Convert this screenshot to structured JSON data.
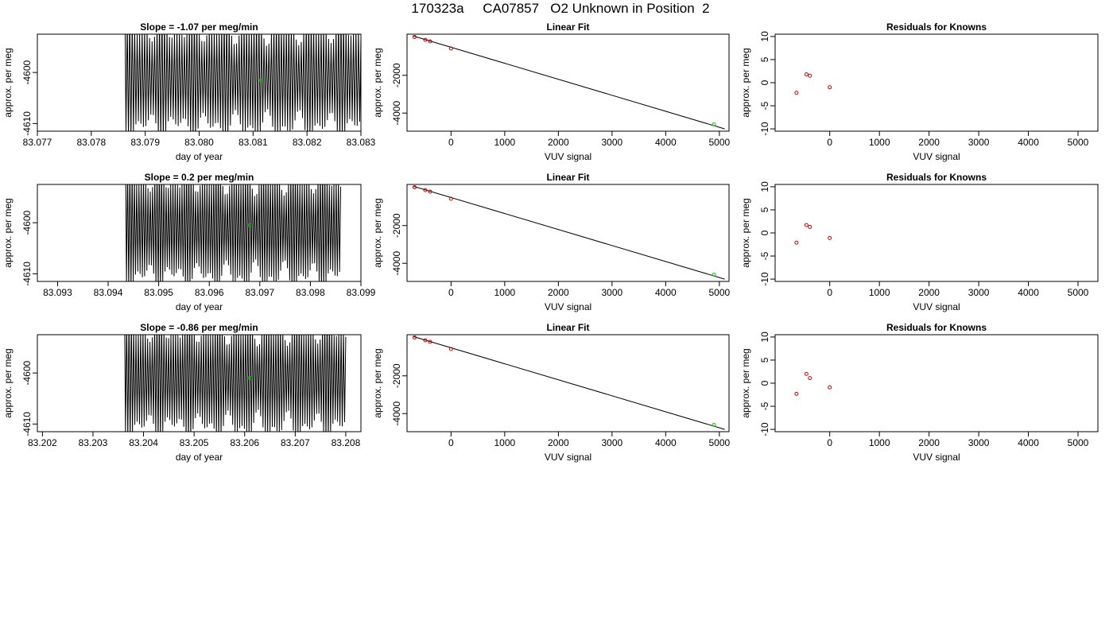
{
  "page": {
    "title": "170323a     CA07857   O2 Unknown in Position  2"
  },
  "colors": {
    "trace": "#000000",
    "unknown_point": "#00cc00",
    "known_point": "#cc0000",
    "fit_line": "#000000"
  },
  "chart_data": [
    {
      "panel": "trace-row-1",
      "type": "line",
      "title": "Slope =  -1.07  per meg/min",
      "xlabel": "day of year",
      "ylabel": "approx. per meg",
      "xlim": [
        83.077,
        83.083
      ],
      "ylim": [
        -4611.5,
        -4592.5
      ],
      "x_ticks": [
        "83.077",
        "83.078",
        "83.079",
        "83.080",
        "83.081",
        "83.082",
        "83.083"
      ],
      "y_ticks": [
        "-4600",
        "-4610"
      ],
      "signal": {
        "x_start": 83.07862,
        "x_end": 83.083,
        "center": -4601,
        "amplitude": 9.5,
        "cycles": 95
      },
      "marker": {
        "x": 83.08115,
        "y": -4601.5
      }
    },
    {
      "panel": "fit-row-1",
      "type": "scatter",
      "title": "Linear Fit",
      "xlabel": "VUV signal",
      "ylabel": "approx. per meg",
      "xlim": [
        -820,
        5180
      ],
      "ylim": [
        -4960,
        180
      ],
      "x_ticks": [
        "0",
        "1000",
        "2000",
        "3000",
        "4000",
        "5000"
      ],
      "y_ticks": [
        "-2000",
        "-4000"
      ],
      "known_points": [
        [
          -680,
          30
        ],
        [
          -480,
          -120
        ],
        [
          -390,
          -200
        ],
        [
          0,
          -580
        ]
      ],
      "unknown_point": [
        4900,
        -4600
      ],
      "fit_line": [
        [
          -700,
          80
        ],
        [
          5100,
          -4840
        ]
      ]
    },
    {
      "panel": "resid-row-1",
      "type": "scatter",
      "title": "Residuals for Knowns",
      "xlabel": "VUV signal",
      "ylabel": "approx. per meg",
      "xlim": [
        -1100,
        5400
      ],
      "ylim": [
        -10.5,
        10.5
      ],
      "x_ticks": [
        "0",
        "1000",
        "2000",
        "3000",
        "4000",
        "5000"
      ],
      "y_ticks": [
        "10",
        "5",
        "0",
        "-5",
        "-10"
      ],
      "points": [
        [
          -670,
          -2.2
        ],
        [
          -470,
          1.8
        ],
        [
          -400,
          1.5
        ],
        [
          0,
          -1.0
        ]
      ]
    },
    {
      "panel": "trace-row-2",
      "type": "line",
      "title": "Slope =  0.2  per meg/min",
      "xlabel": "day of year",
      "ylabel": "approx. per meg",
      "xlim": [
        83.0926,
        83.099
      ],
      "ylim": [
        -4611.5,
        -4592.5
      ],
      "x_ticks": [
        "83.093",
        "83.094",
        "83.095",
        "83.096",
        "83.097",
        "83.098",
        "83.099"
      ],
      "y_ticks": [
        "-4600",
        "-4610"
      ],
      "signal": {
        "x_start": 83.09434,
        "x_end": 83.0986,
        "center": -4601,
        "amplitude": 9.5,
        "cycles": 95
      },
      "marker": {
        "x": 83.0968,
        "y": -4600.5
      }
    },
    {
      "panel": "fit-row-2",
      "type": "scatter",
      "title": "Linear Fit",
      "xlabel": "VUV signal",
      "ylabel": "approx. per meg",
      "xlim": [
        -820,
        5180
      ],
      "ylim": [
        -4960,
        180
      ],
      "x_ticks": [
        "0",
        "1000",
        "2000",
        "3000",
        "4000",
        "5000"
      ],
      "y_ticks": [
        "-2000",
        "-4000"
      ],
      "known_points": [
        [
          -680,
          30
        ],
        [
          -480,
          -120
        ],
        [
          -390,
          -200
        ],
        [
          0,
          -580
        ]
      ],
      "unknown_point": [
        4900,
        -4600
      ],
      "fit_line": [
        [
          -700,
          80
        ],
        [
          5100,
          -4840
        ]
      ]
    },
    {
      "panel": "resid-row-2",
      "type": "scatter",
      "title": "Residuals for Knowns",
      "xlabel": "VUV signal",
      "ylabel": "approx. per meg",
      "xlim": [
        -1100,
        5400
      ],
      "ylim": [
        -10.5,
        10.5
      ],
      "x_ticks": [
        "0",
        "1000",
        "2000",
        "3000",
        "4000",
        "5000"
      ],
      "y_ticks": [
        "10",
        "5",
        "0",
        "-5",
        "-10"
      ],
      "points": [
        [
          -670,
          -2.1
        ],
        [
          -470,
          1.7
        ],
        [
          -400,
          1.3
        ],
        [
          0,
          -1.1
        ]
      ]
    },
    {
      "panel": "trace-row-3",
      "type": "line",
      "title": "Slope =  -0.86  per meg/min",
      "xlabel": "day of year",
      "ylabel": "approx. per meg",
      "xlim": [
        83.2019,
        83.2083
      ],
      "ylim": [
        -4611.5,
        -4592.5
      ],
      "x_ticks": [
        "83.202",
        "83.203",
        "83.204",
        "83.205",
        "83.206",
        "83.207",
        "83.208"
      ],
      "y_ticks": [
        "-4600",
        "-4610"
      ],
      "signal": {
        "x_start": 83.20362,
        "x_end": 83.208,
        "center": -4601,
        "amplitude": 9.5,
        "cycles": 95
      },
      "marker": {
        "x": 83.2061,
        "y": -4601.0
      }
    },
    {
      "panel": "fit-row-3",
      "type": "scatter",
      "title": "Linear Fit",
      "xlabel": "VUV signal",
      "ylabel": "approx. per meg",
      "xlim": [
        -820,
        5180
      ],
      "ylim": [
        -4960,
        180
      ],
      "x_ticks": [
        "0",
        "1000",
        "2000",
        "3000",
        "4000",
        "5000"
      ],
      "y_ticks": [
        "-2000",
        "-4000"
      ],
      "known_points": [
        [
          -680,
          30
        ],
        [
          -480,
          -120
        ],
        [
          -390,
          -200
        ],
        [
          0,
          -580
        ]
      ],
      "unknown_point": [
        4900,
        -4600
      ],
      "fit_line": [
        [
          -700,
          80
        ],
        [
          5100,
          -4840
        ]
      ]
    },
    {
      "panel": "resid-row-3",
      "type": "scatter",
      "title": "Residuals for Knowns",
      "xlabel": "VUV signal",
      "ylabel": "approx. per meg",
      "xlim": [
        -1100,
        5400
      ],
      "ylim": [
        -10.5,
        10.5
      ],
      "x_ticks": [
        "0",
        "1000",
        "2000",
        "3000",
        "4000",
        "5000"
      ],
      "y_ticks": [
        "10",
        "5",
        "0",
        "-5",
        "-10"
      ],
      "points": [
        [
          -670,
          -2.3
        ],
        [
          -470,
          2.0
        ],
        [
          -400,
          1.1
        ],
        [
          0,
          -0.9
        ]
      ]
    }
  ]
}
